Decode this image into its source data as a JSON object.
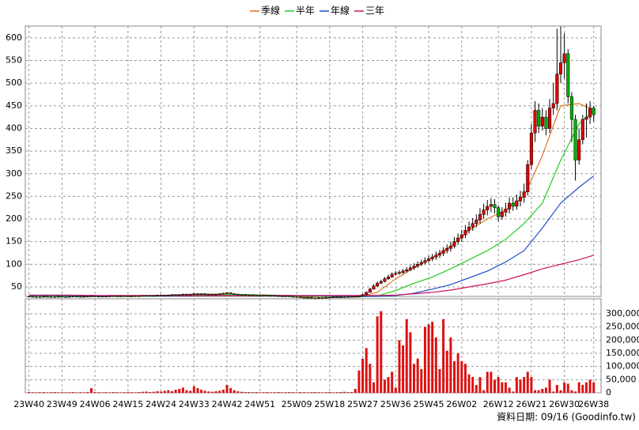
{
  "chart_data": {
    "type": "candlestick",
    "xlim": [
      -1,
      156
    ],
    "xticks": [
      {
        "value": 0,
        "label": "23W40"
      },
      {
        "value": 9,
        "label": "23W49"
      },
      {
        "value": 18,
        "label": "24W06"
      },
      {
        "value": 27,
        "label": "24W15"
      },
      {
        "value": 36,
        "label": "24W24"
      },
      {
        "value": 45,
        "label": "24W33"
      },
      {
        "value": 54,
        "label": "24W42"
      },
      {
        "value": 63,
        "label": "24W51"
      },
      {
        "value": 73,
        "label": "25W09"
      },
      {
        "value": 82,
        "label": "25W18"
      },
      {
        "value": 91,
        "label": "25W27"
      },
      {
        "value": 100,
        "label": "25W36"
      },
      {
        "value": 109,
        "label": "25W45"
      },
      {
        "value": 118,
        "label": "26W02"
      },
      {
        "value": 128,
        "label": "26W12"
      },
      {
        "value": 137,
        "label": "26W21"
      },
      {
        "value": 146,
        "label": "26W30"
      },
      {
        "value": 154,
        "label": "26W38"
      }
    ],
    "ylim": [
      29,
      626
    ],
    "yticks": [
      50,
      100,
      150,
      200,
      250,
      300,
      350,
      400,
      450,
      500,
      550,
      600
    ],
    "grid": true,
    "up_color": "#e00000",
    "down_color": "#00b000",
    "candles": {
      "open": [
        29,
        29,
        28,
        28,
        28,
        29,
        28,
        28,
        28,
        29,
        28,
        28,
        29,
        29,
        29,
        28,
        29,
        29,
        30,
        29,
        29,
        29,
        29,
        30,
        30,
        29,
        30,
        30,
        29,
        30,
        30,
        30,
        31,
        31,
        30,
        31,
        32,
        32,
        31,
        32,
        33,
        32,
        33,
        34,
        33,
        34,
        35,
        34,
        35,
        33,
        34,
        33,
        34,
        35,
        36,
        37,
        35,
        34,
        33,
        33,
        32,
        32,
        32,
        31,
        31,
        32,
        31,
        31,
        30,
        30,
        29,
        30,
        29,
        28,
        28,
        27,
        26,
        27,
        25,
        25,
        26,
        26,
        27,
        27,
        28,
        27,
        28,
        28,
        28,
        29,
        29,
        30,
        33,
        38,
        45,
        52,
        58,
        62,
        68,
        72,
        78,
        80,
        82,
        85,
        88,
        92,
        96,
        100,
        104,
        108,
        112,
        116,
        120,
        124,
        130,
        135,
        140,
        150,
        158,
        165,
        175,
        182,
        190,
        198,
        210,
        220,
        228,
        232,
        225,
        205,
        215,
        222,
        235,
        228,
        240,
        248,
        260,
        320,
        390,
        440,
        405,
        425,
        400,
        445,
        455,
        520,
        545,
        565,
        470,
        420,
        330,
        375,
        420,
        425,
        445
      ],
      "high": [
        30,
        30,
        29,
        29,
        30,
        30,
        29,
        29,
        30,
        30,
        29,
        30,
        30,
        30,
        30,
        30,
        30,
        31,
        31,
        30,
        30,
        30,
        31,
        31,
        31,
        31,
        31,
        31,
        31,
        31,
        31,
        32,
        32,
        32,
        32,
        33,
        33,
        33,
        33,
        34,
        34,
        34,
        35,
        35,
        35,
        36,
        36,
        36,
        36,
        35,
        35,
        35,
        36,
        37,
        38,
        38,
        36,
        35,
        34,
        34,
        33,
        33,
        33,
        32,
        33,
        33,
        32,
        32,
        31,
        31,
        31,
        31,
        30,
        29,
        29,
        28,
        28,
        28,
        26,
        27,
        27,
        28,
        28,
        29,
        29,
        29,
        29,
        29,
        30,
        30,
        31,
        35,
        40,
        48,
        56,
        62,
        66,
        72,
        77,
        82,
        85,
        87,
        90,
        94,
        98,
        102,
        106,
        110,
        115,
        119,
        123,
        128,
        132,
        138,
        144,
        150,
        160,
        168,
        176,
        186,
        194,
        202,
        210,
        224,
        234,
        242,
        246,
        244,
        230,
        226,
        236,
        248,
        248,
        254,
        262,
        278,
        330,
        410,
        460,
        455,
        445,
        440,
        465,
        500,
        620,
        625,
        610,
        575,
        480,
        430,
        400,
        430,
        455,
        460,
        450
      ],
      "low": [
        28,
        27,
        27,
        27,
        27,
        27,
        27,
        27,
        27,
        27,
        27,
        27,
        28,
        28,
        27,
        27,
        28,
        28,
        28,
        28,
        28,
        28,
        28,
        29,
        28,
        28,
        29,
        28,
        28,
        29,
        29,
        29,
        30,
        29,
        29,
        30,
        31,
        30,
        30,
        31,
        31,
        31,
        32,
        32,
        32,
        33,
        33,
        33,
        32,
        32,
        32,
        32,
        33,
        34,
        35,
        34,
        33,
        32,
        32,
        31,
        31,
        31,
        30,
        30,
        30,
        30,
        30,
        29,
        29,
        28,
        28,
        28,
        27,
        27,
        26,
        25,
        25,
        24,
        24,
        24,
        25,
        25,
        26,
        26,
        26,
        26,
        27,
        27,
        27,
        28,
        28,
        29,
        32,
        37,
        44,
        50,
        56,
        60,
        65,
        70,
        75,
        77,
        79,
        82,
        85,
        88,
        92,
        96,
        100,
        103,
        107,
        110,
        114,
        118,
        124,
        128,
        135,
        143,
        150,
        158,
        168,
        174,
        182,
        190,
        200,
        208,
        215,
        212,
        195,
        198,
        205,
        212,
        218,
        220,
        228,
        236,
        252,
        310,
        370,
        390,
        395,
        385,
        390,
        430,
        440,
        500,
        510,
        455,
        370,
        285,
        320,
        365,
        380,
        410,
        415
      ],
      "close": [
        29,
        28,
        28,
        28,
        29,
        28,
        28,
        28,
        29,
        28,
        28,
        29,
        29,
        29,
        28,
        29,
        29,
        30,
        29,
        29,
        29,
        29,
        30,
        30,
        29,
        30,
        30,
        29,
        30,
        30,
        30,
        31,
        31,
        30,
        31,
        32,
        32,
        31,
        32,
        33,
        32,
        33,
        34,
        33,
        34,
        35,
        34,
        35,
        33,
        34,
        33,
        34,
        35,
        36,
        37,
        35,
        34,
        33,
        33,
        32,
        32,
        32,
        31,
        31,
        32,
        31,
        31,
        30,
        30,
        29,
        30,
        29,
        28,
        28,
        27,
        26,
        27,
        25,
        25,
        26,
        26,
        27,
        27,
        28,
        27,
        28,
        28,
        28,
        29,
        29,
        30,
        33,
        38,
        45,
        52,
        58,
        62,
        68,
        72,
        78,
        80,
        82,
        85,
        88,
        92,
        96,
        100,
        104,
        108,
        112,
        116,
        120,
        124,
        130,
        135,
        140,
        150,
        158,
        165,
        175,
        182,
        190,
        198,
        210,
        220,
        228,
        232,
        225,
        205,
        215,
        222,
        235,
        228,
        240,
        248,
        260,
        320,
        390,
        440,
        405,
        425,
        400,
        445,
        455,
        520,
        545,
        565,
        470,
        420,
        330,
        375,
        420,
        425,
        445,
        430
      ]
    },
    "series": [
      {
        "name": "季線",
        "color": "#e07020",
        "x": [
          0,
          10,
          20,
          30,
          40,
          50,
          60,
          70,
          80,
          90,
          95,
          100,
          105,
          110,
          115,
          120,
          125,
          130,
          135,
          140,
          145,
          150,
          154
        ],
        "values": [
          29,
          29,
          29,
          30,
          32,
          34,
          33,
          30,
          26,
          28,
          38,
          68,
          92,
          115,
          140,
          175,
          200,
          220,
          250,
          340,
          450,
          455,
          440
        ]
      },
      {
        "name": "半年",
        "color": "#22cc22",
        "x": [
          0,
          10,
          20,
          30,
          40,
          50,
          60,
          70,
          80,
          90,
          95,
          100,
          105,
          110,
          115,
          120,
          125,
          130,
          135,
          140,
          145,
          150,
          154
        ],
        "values": [
          30,
          29,
          29,
          29,
          31,
          33,
          33,
          31,
          29,
          28,
          30,
          42,
          58,
          72,
          90,
          110,
          130,
          155,
          190,
          235,
          330,
          410,
          440
        ]
      },
      {
        "name": "年線",
        "color": "#1e50c8",
        "x": [
          0,
          10,
          20,
          30,
          40,
          50,
          60,
          70,
          80,
          90,
          95,
          100,
          105,
          110,
          115,
          120,
          125,
          130,
          135,
          140,
          145,
          150,
          154
        ],
        "values": [
          31,
          31,
          30,
          30,
          30,
          31,
          31,
          31,
          30,
          29,
          29,
          31,
          36,
          45,
          55,
          70,
          85,
          105,
          130,
          180,
          235,
          270,
          295
        ]
      },
      {
        "name": "三年",
        "color": "#cc1060",
        "x": [
          0,
          10,
          20,
          30,
          40,
          50,
          60,
          70,
          80,
          90,
          95,
          100,
          105,
          110,
          115,
          120,
          125,
          130,
          135,
          140,
          145,
          150,
          154
        ],
        "values": [
          32,
          32,
          31,
          31,
          31,
          31,
          31,
          31,
          31,
          31,
          31,
          32,
          35,
          38,
          43,
          50,
          57,
          65,
          77,
          90,
          100,
          110,
          120
        ]
      }
    ],
    "volume": {
      "color": "#dd1111",
      "ylim": [
        0,
        357000
      ],
      "yticks": [
        0,
        {
          "value": 50000,
          "label": "50,000"
        },
        {
          "value": 100000,
          "label": "100,000"
        },
        {
          "value": 150000,
          "label": "150,000"
        },
        {
          "value": 200000,
          "label": "200,000"
        },
        {
          "value": 250000,
          "label": "250,000"
        },
        {
          "value": 300000,
          "label": "300,000"
        }
      ],
      "values": [
        3000,
        2500,
        2000,
        2500,
        3000,
        2000,
        2500,
        3000,
        2000,
        2500,
        2000,
        2500,
        3000,
        2000,
        2500,
        2000,
        3000,
        18000,
        3000,
        2500,
        2000,
        2500,
        2000,
        3000,
        2500,
        2000,
        2500,
        3000,
        2500,
        2000,
        3000,
        4000,
        5000,
        3000,
        4000,
        6000,
        5000,
        8000,
        10000,
        6000,
        12000,
        15000,
        20000,
        10000,
        8000,
        25000,
        18000,
        12000,
        8000,
        5000,
        4000,
        6000,
        8000,
        12000,
        30000,
        18000,
        10000,
        6000,
        4000,
        3000,
        3000,
        2500,
        3000,
        2000,
        2500,
        3000,
        2000,
        2500,
        3000,
        2000,
        2500,
        3000,
        2500,
        2000,
        3000,
        2500,
        2000,
        2500,
        3000,
        2500,
        2000,
        2500,
        3000,
        2000,
        2500,
        3000,
        4000,
        2500,
        3000,
        15000,
        85000,
        130000,
        170000,
        110000,
        40000,
        290000,
        310000,
        50000,
        60000,
        80000,
        20000,
        200000,
        180000,
        280000,
        230000,
        110000,
        130000,
        90000,
        250000,
        260000,
        270000,
        210000,
        90000,
        280000,
        160000,
        210000,
        120000,
        150000,
        120000,
        110000,
        70000,
        60000,
        30000,
        60000,
        10000,
        80000,
        80000,
        50000,
        60000,
        40000,
        40000,
        20000,
        5000,
        60000,
        50000,
        60000,
        80000,
        60000,
        10000,
        10000,
        15000,
        20000,
        50000,
        5000,
        30000,
        10000,
        40000,
        35000,
        10000,
        5000,
        40000,
        30000,
        40000,
        50000,
        40000
      ]
    },
    "source_note": "資料日期: 09/16  (Goodinfo.tw)"
  }
}
